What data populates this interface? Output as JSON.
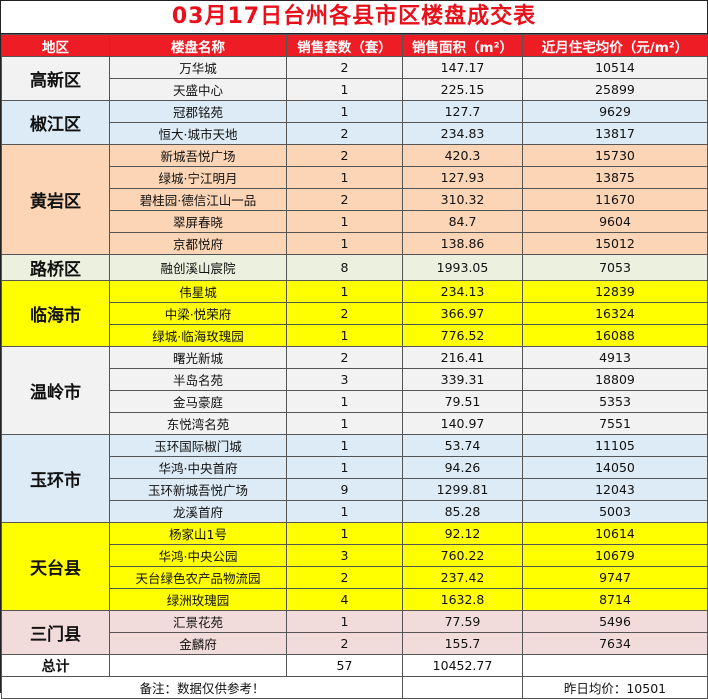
{
  "title": "03月17日台州各县市区楼盘成交表",
  "headers": [
    "地区",
    "楼盘名称",
    "销售套数（套）",
    "销售面积（m²）",
    "近月住宅均价（元/m²）"
  ],
  "districts": [
    {
      "name": "高新区",
      "color": "#f2f2f2",
      "rows": [
        {
          "project": "万华城",
          "units": "2",
          "area": "147.17",
          "price": "10514"
        },
        {
          "project": "天盛中心",
          "units": "1",
          "area": "225.15",
          "price": "25899"
        }
      ]
    },
    {
      "name": "椒江区",
      "color": "#dcebf5",
      "rows": [
        {
          "project": "冠郡铭苑",
          "units": "1",
          "area": "127.7",
          "price": "9629"
        },
        {
          "project": "恒大·城市天地",
          "units": "2",
          "area": "234.83",
          "price": "13817"
        }
      ]
    },
    {
      "name": "黄岩区",
      "color": "#fbd5b5",
      "rows": [
        {
          "project": "新城吾悦广场",
          "units": "2",
          "area": "420.3",
          "price": "15730"
        },
        {
          "project": "绿城·宁江明月",
          "units": "1",
          "area": "127.93",
          "price": "13875"
        },
        {
          "project": "碧桂园·德信江山一品",
          "units": "2",
          "area": "310.32",
          "price": "11670"
        },
        {
          "project": "翠屏春晓",
          "units": "1",
          "area": "84.7",
          "price": "9604"
        },
        {
          "project": "京都悦府",
          "units": "1",
          "area": "138.86",
          "price": "15012"
        }
      ]
    },
    {
      "name": "路桥区",
      "color": "#ebf1de",
      "rows": [
        {
          "project": "融创溪山宸院",
          "units": "8",
          "area": "1993.05",
          "price": "7053"
        }
      ]
    },
    {
      "name": "临海市",
      "color": "#ffff00",
      "rows": [
        {
          "project": "伟星城",
          "units": "1",
          "area": "234.13",
          "price": "12839"
        },
        {
          "project": "中梁·悦荣府",
          "units": "2",
          "area": "366.97",
          "price": "16324"
        },
        {
          "project": "绿城·临海玫瑰园",
          "units": "1",
          "area": "776.52",
          "price": "16088"
        }
      ]
    },
    {
      "name": "温岭市",
      "color": "#f2f2f2",
      "rows": [
        {
          "project": "曙光新城",
          "units": "2",
          "area": "216.41",
          "price": "4913"
        },
        {
          "project": "半岛名苑",
          "units": "3",
          "area": "339.31",
          "price": "18809"
        },
        {
          "project": "金马豪庭",
          "units": "1",
          "area": "79.51",
          "price": "5353"
        },
        {
          "project": "东悦湾名苑",
          "units": "1",
          "area": "140.97",
          "price": "7551"
        }
      ]
    },
    {
      "name": "玉环市",
      "color": "#dcebf5",
      "rows": [
        {
          "project": "玉环国际椒门城",
          "units": "1",
          "area": "53.74",
          "price": "11105"
        },
        {
          "project": "华鸿·中央首府",
          "units": "1",
          "area": "94.26",
          "price": "14050"
        },
        {
          "project": "玉环新城吾悦广场",
          "units": "9",
          "area": "1299.81",
          "price": "12043"
        },
        {
          "project": "龙溪首府",
          "units": "1",
          "area": "85.28",
          "price": "5003"
        }
      ]
    },
    {
      "name": "天台县",
      "color": "#ffff00",
      "rows": [
        {
          "project": "杨家山1号",
          "units": "1",
          "area": "92.12",
          "price": "10614"
        },
        {
          "project": "华鸿·中央公园",
          "units": "3",
          "area": "760.22",
          "price": "10679"
        },
        {
          "project": "天台绿色农产品物流园",
          "units": "2",
          "area": "237.42",
          "price": "9747"
        },
        {
          "project": "绿洲玫瑰园",
          "units": "4",
          "area": "1632.8",
          "price": "8714"
        }
      ]
    },
    {
      "name": "三门县",
      "color": "#f2dcdb",
      "rows": [
        {
          "project": "汇景花苑",
          "units": "1",
          "area": "77.59",
          "price": "5496"
        },
        {
          "project": "金麟府",
          "units": "2",
          "area": "155.7",
          "price": "7634"
        }
      ]
    }
  ],
  "total": {
    "label": "总计",
    "units": "57",
    "area": "10452.77"
  },
  "note": {
    "left": "备注：数据仅供参考！",
    "right": "昨日均价：10501"
  }
}
